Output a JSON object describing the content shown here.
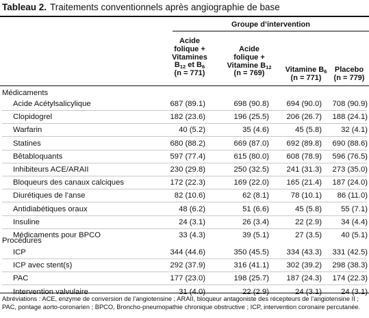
{
  "table": {
    "title_bold": "Tableau 2.",
    "title_text": "Traitements conventionnels après angiographie de base",
    "group_header": "Groupe d’intervention",
    "columns": [
      {
        "l1": "Acide",
        "l2": "folique +",
        "l3": "Vitamines",
        "l4a": "B",
        "s1": "12",
        "l4b": " et B",
        "s2": "6",
        "l5": "(n = 771)"
      },
      {
        "l1": "Acide",
        "l2": "folique +",
        "l3a": "Vitamine B",
        "s1": "12",
        "l4": "(n = 769)"
      },
      {
        "l1a": "Vitamine B",
        "s1": "6",
        "l2": "(n = 771)"
      },
      {
        "l1": "Placebo",
        "l2": "(n = 779)"
      }
    ],
    "sections": [
      {
        "label": "Médicaments",
        "rows": [
          {
            "label": "Acide Acétylsalicylique",
            "cells": [
              "687 (89.1)",
              "698 (90.8)",
              "694 (90.0)",
              "708 (90.9)"
            ]
          },
          {
            "label": "Clopidogrel",
            "cells": [
              "182 (23.6)",
              "196 (25.5)",
              "206 (26.7)",
              "188 (24.1)"
            ]
          },
          {
            "label": "Warfarin",
            "cells": [
              "40 (5.2)",
              "35 (4.6)",
              "45 (5.8)",
              "32 (4.1)"
            ]
          },
          {
            "label": "Statines",
            "cells": [
              "680 (88.2)",
              "669 (87.0)",
              "692 (89.8)",
              "690 (88.6)"
            ]
          },
          {
            "label": "Bêtabloquants",
            "cells": [
              "597 (77.4)",
              "615 (80.0)",
              "608 (78.9)",
              "596 (76.5)"
            ]
          },
          {
            "label": "Inhibiteurs ACE/ARAII",
            "cells": [
              "230 (29.8)",
              "250 (32.5)",
              "241 (31.3)",
              "273 (35.0)"
            ]
          },
          {
            "label": "Bloqueurs des canaux calciques",
            "cells": [
              "172 (22.3)",
              "169 (22.0)",
              "165 (21.4)",
              "187 (24.0)"
            ]
          },
          {
            "label": "Diurétiques de l’anse",
            "cells": [
              "82 (10.6)",
              "62 (8.1)",
              "78 (10.1)",
              "86 (11.0)"
            ]
          },
          {
            "label": "Antidiabétiques oraux",
            "cells": [
              "48 (6.2)",
              "51 (6.6)",
              "45 (5.8)",
              "55 (7.1)"
            ]
          },
          {
            "label": "Insuline",
            "cells": [
              "24 (3.1)",
              "26 (3.4)",
              "22 (2.9)",
              "34 (4.4)"
            ]
          },
          {
            "label": "Médicaments pour BPCO",
            "cells": [
              "33 (4.3)",
              "39 (5.1)",
              "27 (3.5)",
              "40 (5.1)"
            ]
          }
        ]
      },
      {
        "label": "Procédures",
        "rows": [
          {
            "label": "ICP",
            "cells": [
              "344 (44.6)",
              "350 (45.5)",
              "334 (43.3)",
              "331 (42.5)"
            ]
          },
          {
            "label": "ICP avec stent(s)",
            "cells": [
              "292 (37.9)",
              "316 (41.1)",
              "302 (39.2)",
              "298 (38.3)"
            ]
          },
          {
            "label": "PAC",
            "cells": [
              "177 (23.0)",
              "198 (25.7)",
              "187 (24.3)",
              "174 (22.3)"
            ]
          },
          {
            "label": "Intervention valvulaire",
            "cells": [
              "31 (4.0)",
              "22 (2.9)",
              "24 (3.1)",
              "24 (3.1)"
            ]
          }
        ]
      }
    ],
    "footnote": "Abréviations : ACE, enzyme de conversion de l’angiotensine ; ARAII, bloqueur antagoniste des récepteurs de l’angiotensine II ; PAC, pontage aorto-coronarien ; BPCO, Broncho-pneumopathie chronique obstructive ; ICP, intervention coronaire percutanée."
  }
}
